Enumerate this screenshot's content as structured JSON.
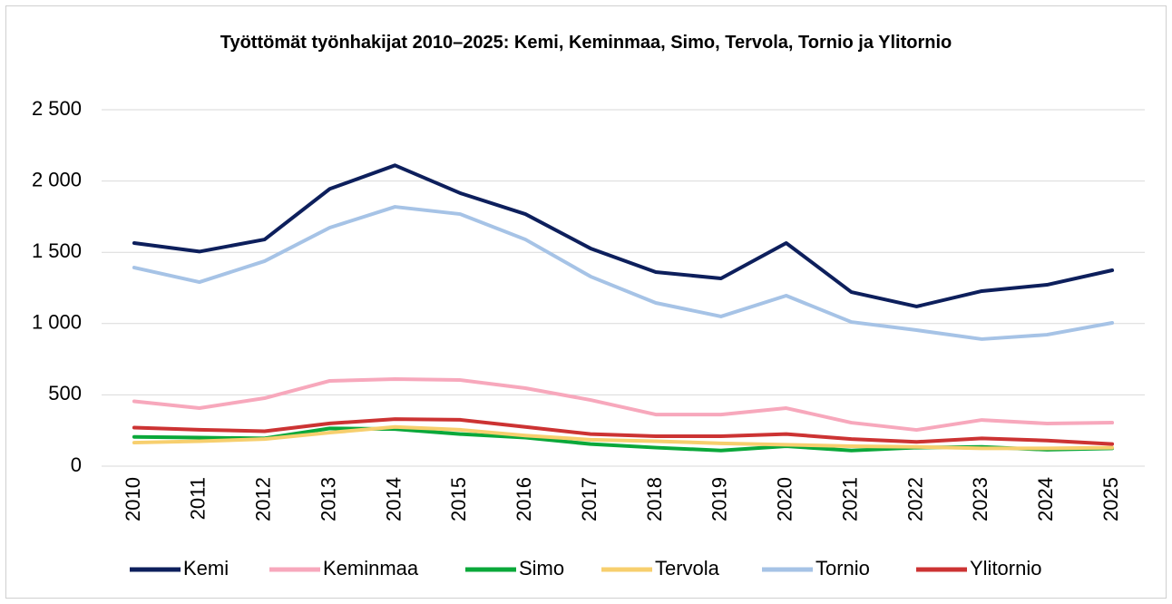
{
  "chart_data": {
    "type": "line",
    "title": "Työttömät työnhakijat 2010–2025: Kemi, Keminmaa, Simo, Tervola, Tornio ja Ylitornio",
    "categories": [
      "2010",
      "2011",
      "2012",
      "2013",
      "2014",
      "2015",
      "2016",
      "2017",
      "2018",
      "2019",
      "2020",
      "2021",
      "2022",
      "2023",
      "2024",
      "2025"
    ],
    "series": [
      {
        "name": "Kemi",
        "color": "#0d1f5c",
        "values": [
          1565,
          1505,
          1590,
          1945,
          2110,
          1915,
          1768,
          1527,
          1361,
          1317,
          1565,
          1221,
          1120,
          1228,
          1272,
          1374
        ]
      },
      {
        "name": "Keminmaa",
        "color": "#f7a8bc",
        "values": [
          455,
          407,
          477,
          598,
          611,
          604,
          547,
          464,
          362,
          362,
          407,
          305,
          254,
          324,
          299,
          305
        ]
      },
      {
        "name": "Simo",
        "color": "#0aa83a",
        "values": [
          205,
          200,
          195,
          265,
          260,
          225,
          200,
          155,
          130,
          110,
          140,
          110,
          130,
          135,
          115,
          125
        ]
      },
      {
        "name": "Tervola",
        "color": "#f7cf6e",
        "values": [
          165,
          175,
          190,
          235,
          275,
          255,
          215,
          185,
          175,
          160,
          150,
          140,
          135,
          125,
          125,
          130
        ]
      },
      {
        "name": "Tornio",
        "color": "#a6c3e6",
        "values": [
          1393,
          1291,
          1438,
          1673,
          1819,
          1768,
          1590,
          1330,
          1145,
          1050,
          1196,
          1011,
          954,
          891,
          922,
          1005
        ]
      },
      {
        "name": "Ylitornio",
        "color": "#cc3333",
        "values": [
          270,
          255,
          245,
          300,
          330,
          325,
          275,
          225,
          210,
          210,
          225,
          190,
          170,
          195,
          180,
          155
        ]
      }
    ],
    "ylim": [
      0,
      2500
    ],
    "yticks": [
      0,
      500,
      {
        "value": 1000,
        "label": "1 000"
      },
      {
        "value": 1500,
        "label": "1 500"
      },
      {
        "value": 2000,
        "label": "2 000"
      },
      {
        "value": 2500,
        "label": "2 500"
      }
    ],
    "grid": true,
    "legend": "bottom"
  }
}
